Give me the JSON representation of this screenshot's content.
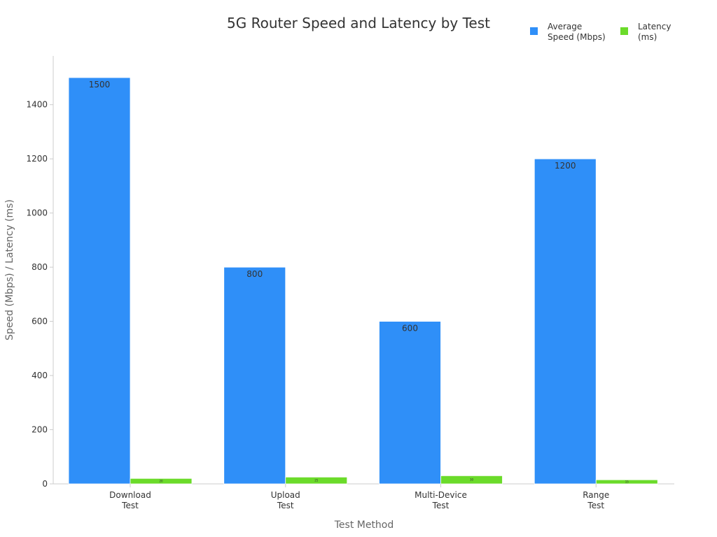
{
  "chart_data": {
    "type": "bar",
    "title": "5G Router Speed and Latency by Test",
    "xlabel": "Test Method",
    "ylabel": "Speed (Mbps) / Latency (ms)",
    "categories": [
      [
        "Download",
        "Test"
      ],
      [
        "Upload",
        "Test"
      ],
      [
        "Multi-Device",
        "Test"
      ],
      [
        "Range",
        "Test"
      ]
    ],
    "series": [
      {
        "name": [
          "Average",
          "Speed (Mbps)"
        ],
        "values": [
          1500,
          800,
          600,
          1200
        ],
        "color": "#2F8FF8"
      },
      {
        "name": [
          "Latency",
          "(ms)"
        ],
        "values": [
          20,
          25,
          30,
          15
        ],
        "color": "#6BDB2A"
      }
    ],
    "ylim": [
      0,
      1580
    ],
    "yticks": [
      0,
      200,
      400,
      600,
      800,
      1000,
      1200,
      1400
    ],
    "legend_position": "top-right",
    "grid": false
  }
}
